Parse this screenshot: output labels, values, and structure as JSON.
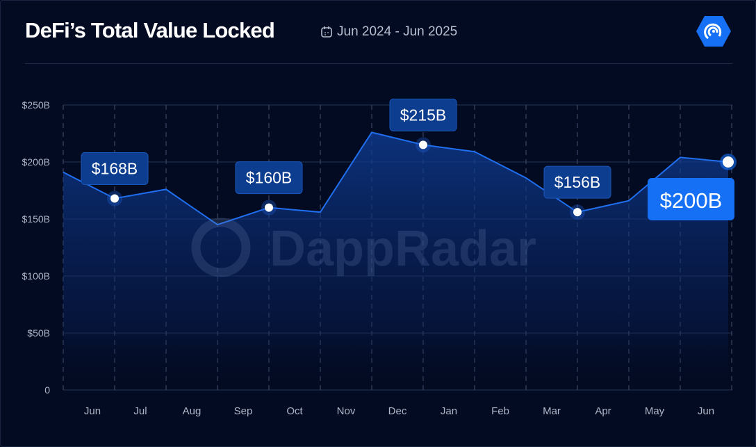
{
  "header": {
    "title": "DeFi’s Total Value Locked",
    "date_range": "Jun 2024 - Jun 2025",
    "calendar_icon": "calendar-icon",
    "logo_icon": "dappradar-logo-icon"
  },
  "watermark": "DappRadar",
  "colors": {
    "background": "#030b22",
    "line": "#1f6ff0",
    "label_bg": "#0d3d8f",
    "highlight_bg": "#1570f5"
  },
  "chart_data": {
    "type": "area",
    "title": "DeFi’s Total Value Locked",
    "ylim": [
      0,
      250
    ],
    "yticks": [
      0,
      50,
      100,
      150,
      200,
      250
    ],
    "ytick_labels": [
      "0",
      "$50B",
      "$100B",
      "$150B",
      "$200B",
      "$250B"
    ],
    "xtick_labels": [
      "Jun",
      "Jul",
      "Aug",
      "Sep",
      "Oct",
      "Nov",
      "Dec",
      "Jan",
      "Feb",
      "Mar",
      "Apr",
      "May",
      "Jun"
    ],
    "grid": true,
    "values": [
      191,
      168,
      176,
      145,
      160,
      156,
      226,
      215,
      209,
      186,
      156,
      166,
      204,
      200
    ],
    "annotations": [
      {
        "index": 1,
        "label": "$168B"
      },
      {
        "index": 4,
        "label": "$160B"
      },
      {
        "index": 7,
        "label": "$215B"
      },
      {
        "index": 10,
        "label": "$156B"
      },
      {
        "index": 13,
        "label": "$200B",
        "highlight": true
      }
    ]
  }
}
